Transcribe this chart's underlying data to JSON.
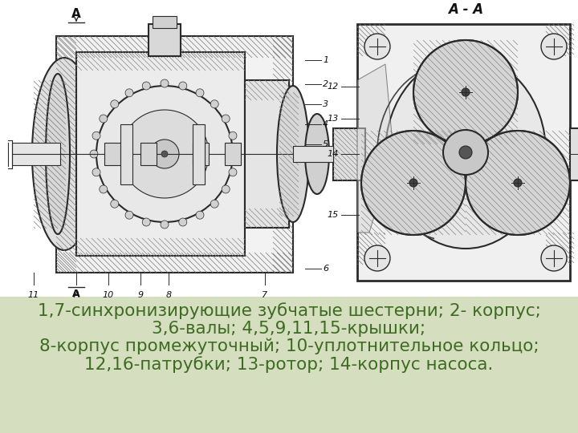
{
  "fig_width": 7.2,
  "fig_height": 5.4,
  "dpi": 100,
  "bg_color": "#ffffff",
  "text_color": "#3d6b22",
  "text_lines": [
    "1,7-синхронизирующие зубчатые шестерни; 2- корпус;",
    "3,6-валы; 4,5,9,11,15-крышки;",
    "8-корпус промежуточный; 10-уплотнительное кольцо;",
    "12,16-патрубки; 13-ротор; 14-корпус насоса."
  ],
  "text_fontsize": 15.5,
  "green_bg_color": "#c8d4a8",
  "green_bg_alpha": 0.75,
  "label_color": "#222222",
  "label_fontsize": 12
}
